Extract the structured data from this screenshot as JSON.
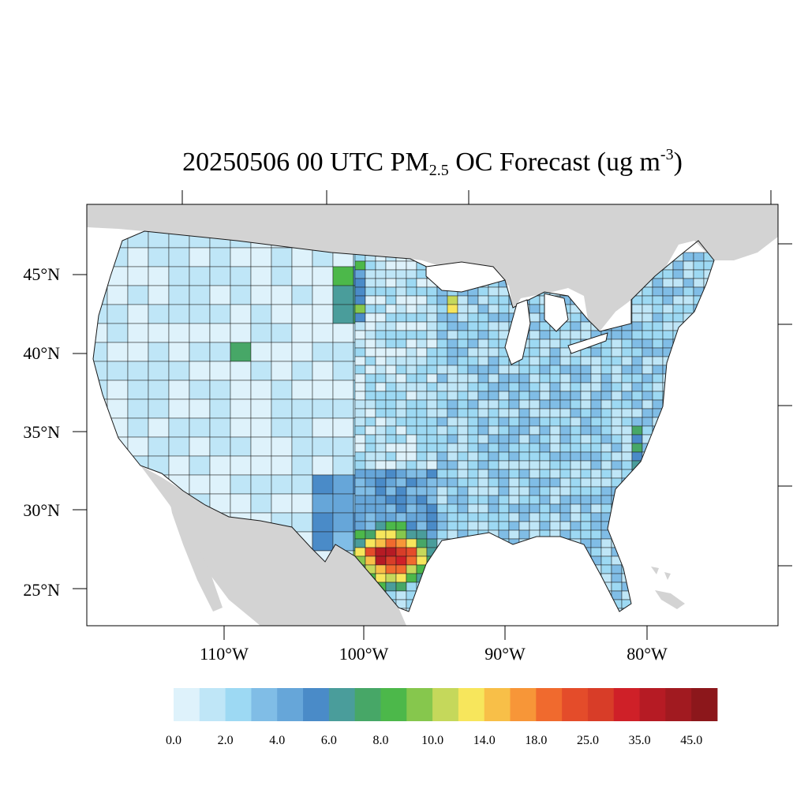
{
  "title": {
    "prefix": "20250506 00 UTC PM",
    "sub": "2.5",
    "middle": " OC Forecast (ug m",
    "sup": "-3",
    "suffix": ")"
  },
  "map": {
    "region": "Contiguous United States (county-level)",
    "lat_labels": [
      "45°N",
      "40°N",
      "35°N",
      "30°N",
      "25°N"
    ],
    "lon_labels": [
      "110°W",
      "100°W",
      "90°W",
      "80°W"
    ],
    "colors": {
      "ocean": "#ffffff",
      "outside_land": "#d3d3d3",
      "county_border": "#1a1a1a",
      "frame": "#000000"
    }
  },
  "colorbar": {
    "colors": [
      "#def2fb",
      "#bfe6f7",
      "#9dd9f3",
      "#80bde6",
      "#66a6d9",
      "#4a8bc8",
      "#4a9d9b",
      "#47a767",
      "#4cb84a",
      "#86c74d",
      "#c5d85b",
      "#f7e65c",
      "#f8bf48",
      "#f79638",
      "#f06a2e",
      "#e44c2a",
      "#d83d28",
      "#cf2028",
      "#b61b24",
      "#a11a20",
      "#8c171b"
    ],
    "labels": [
      "0.0",
      "2.0",
      "4.0",
      "6.0",
      "8.0",
      "10.0",
      "14.0",
      "18.0",
      "25.0",
      "35.0",
      "45.0"
    ]
  }
}
